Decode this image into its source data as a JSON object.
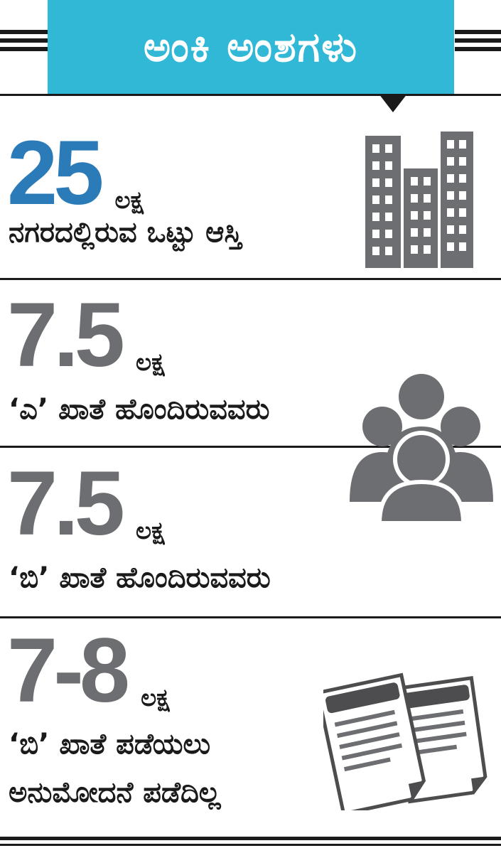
{
  "header": {
    "title": "ಅಂಕಿ ಅಂಶಗಳು"
  },
  "colors": {
    "banner": "#31b8d6",
    "accent_number": "#2b7bb8",
    "number_gray": "#6d6e71",
    "icon_gray": "#6d6e71",
    "rule": "#1a1a1a"
  },
  "stats": [
    {
      "number": "25",
      "unit": "ಲಕ್ಷ",
      "lines": [
        "ನಗರದಲ್ಲಿರುವ ಒಟ್ಟು ಆಸ್ತಿ"
      ],
      "icon": "buildings-icon"
    },
    {
      "number": "7.5",
      "unit": "ಲಕ್ಷ",
      "lines": [
        "‘ಎ’ ಖಾತೆ ಹೊಂದಿರುವವರು"
      ],
      "icon": "people-group-icon"
    },
    {
      "number": "7.5",
      "unit": "ಲಕ್ಷ",
      "lines": [
        "‘ಬಿ’ ಖಾತೆ ಹೊಂದಿರುವವರು"
      ]
    },
    {
      "number": "7-8",
      "unit": "ಲಕ್ಷ",
      "lines": [
        "‘ಬಿ’ ಖಾತೆ ಪಡೆಯಲು",
        "ಅನುಮೋದನೆ ಪಡೆದಿಲ್ಲ"
      ],
      "icon": "documents-icon"
    }
  ]
}
